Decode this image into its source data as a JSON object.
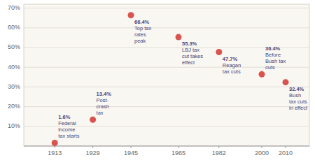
{
  "chart_data": {
    "type": "scatter",
    "x": [
      1913,
      1929,
      1945,
      1965,
      1982,
      2000,
      2010
    ],
    "values": [
      1.6,
      13.4,
      66.4,
      55.3,
      47.7,
      36.4,
      32.4
    ],
    "annotations": [
      "1.6%\nFederal\nincome\ntax starts",
      "13.4%\nPost-\ncrash\ntax",
      "66.4%\nTop tax\nrates\npeak",
      "55.3%\nLBJ tax\ncut takes\neffect",
      "47.7%\nReagan\ntax cuts",
      "36.4%\nBefore\nBush tax\ncuts",
      "32.4%\nBush\ntax cuts\nin effect"
    ],
    "color": "#d9534f",
    "xlim": [
      1900,
      2020
    ],
    "xticks": [
      1913,
      1929,
      1945,
      1965,
      1982,
      2000,
      2010
    ],
    "ylim": [
      0,
      72
    ],
    "yticks": [
      {
        "value": 10,
        "label": "10%"
      },
      {
        "value": 20,
        "label": "20%"
      },
      {
        "value": 30,
        "label": "30%"
      },
      {
        "value": 40,
        "label": "40%"
      },
      {
        "value": 50,
        "label": "50%"
      },
      {
        "value": 60,
        "label": "60%"
      },
      {
        "value": 70,
        "label": "70%"
      }
    ],
    "grid": true
  }
}
